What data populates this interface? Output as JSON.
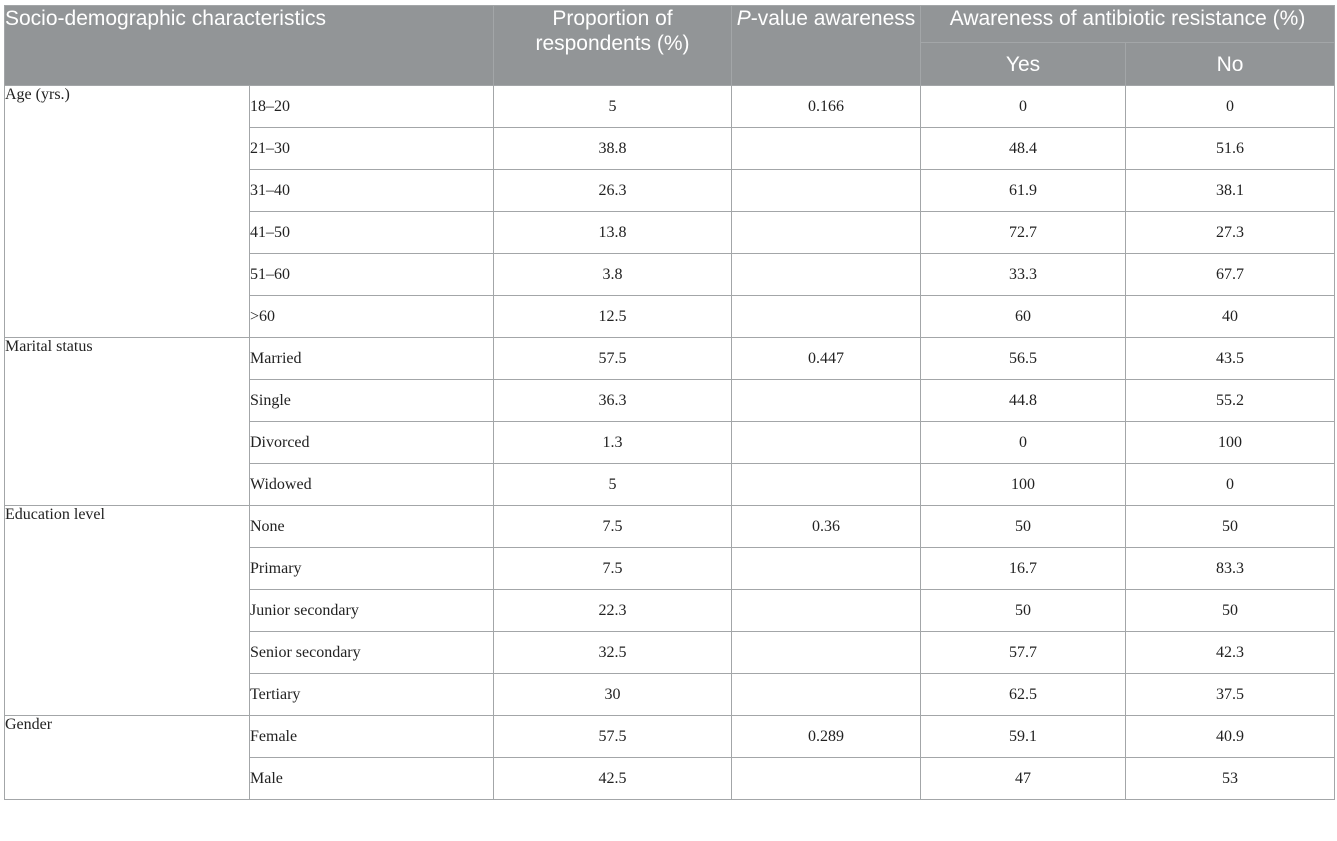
{
  "header": {
    "characteristics": "Socio-demographic characteristics",
    "proportion": "Proportion of respondents (%)",
    "pvalue_italic": "P",
    "pvalue_rest": "-value awareness",
    "awareness": "Awareness of antibiotic resistance (%)",
    "yes": "Yes",
    "no": "No"
  },
  "groups": [
    {
      "label": "Age (yrs.)",
      "p_value": "0.166",
      "rows": [
        {
          "sub": "18–20",
          "proportion": "5",
          "yes": "0",
          "no": "0"
        },
        {
          "sub": "21–30",
          "proportion": "38.8",
          "yes": "48.4",
          "no": "51.6"
        },
        {
          "sub": "31–40",
          "proportion": "26.3",
          "yes": "61.9",
          "no": "38.1"
        },
        {
          "sub": "41–50",
          "proportion": "13.8",
          "yes": "72.7",
          "no": "27.3"
        },
        {
          "sub": "51–60",
          "proportion": "3.8",
          "yes": "33.3",
          "no": "67.7"
        },
        {
          "sub": ">60",
          "proportion": "12.5",
          "yes": "60",
          "no": "40"
        }
      ]
    },
    {
      "label": "Marital status",
      "p_value": "0.447",
      "rows": [
        {
          "sub": "Married",
          "proportion": "57.5",
          "yes": "56.5",
          "no": "43.5"
        },
        {
          "sub": "Single",
          "proportion": "36.3",
          "yes": "44.8",
          "no": "55.2"
        },
        {
          "sub": "Divorced",
          "proportion": "1.3",
          "yes": "0",
          "no": "100"
        },
        {
          "sub": "Widowed",
          "proportion": "5",
          "yes": "100",
          "no": "0"
        }
      ]
    },
    {
      "label": "Education level",
      "p_value": "0.36",
      "rows": [
        {
          "sub": "None",
          "proportion": "7.5",
          "yes": "50",
          "no": "50"
        },
        {
          "sub": "Primary",
          "proportion": "7.5",
          "yes": "16.7",
          "no": "83.3"
        },
        {
          "sub": "Junior secondary",
          "proportion": "22.3",
          "yes": "50",
          "no": "50"
        },
        {
          "sub": "Senior secondary",
          "proportion": "32.5",
          "yes": "57.7",
          "no": "42.3"
        },
        {
          "sub": "Tertiary",
          "proportion": "30",
          "yes": "62.5",
          "no": "37.5"
        }
      ]
    },
    {
      "label": "Gender",
      "p_value": "0.289",
      "rows": [
        {
          "sub": "Female",
          "proportion": "57.5",
          "yes": "59.1",
          "no": "40.9"
        },
        {
          "sub": "Male",
          "proportion": "42.5",
          "yes": "47",
          "no": "53"
        }
      ]
    }
  ]
}
